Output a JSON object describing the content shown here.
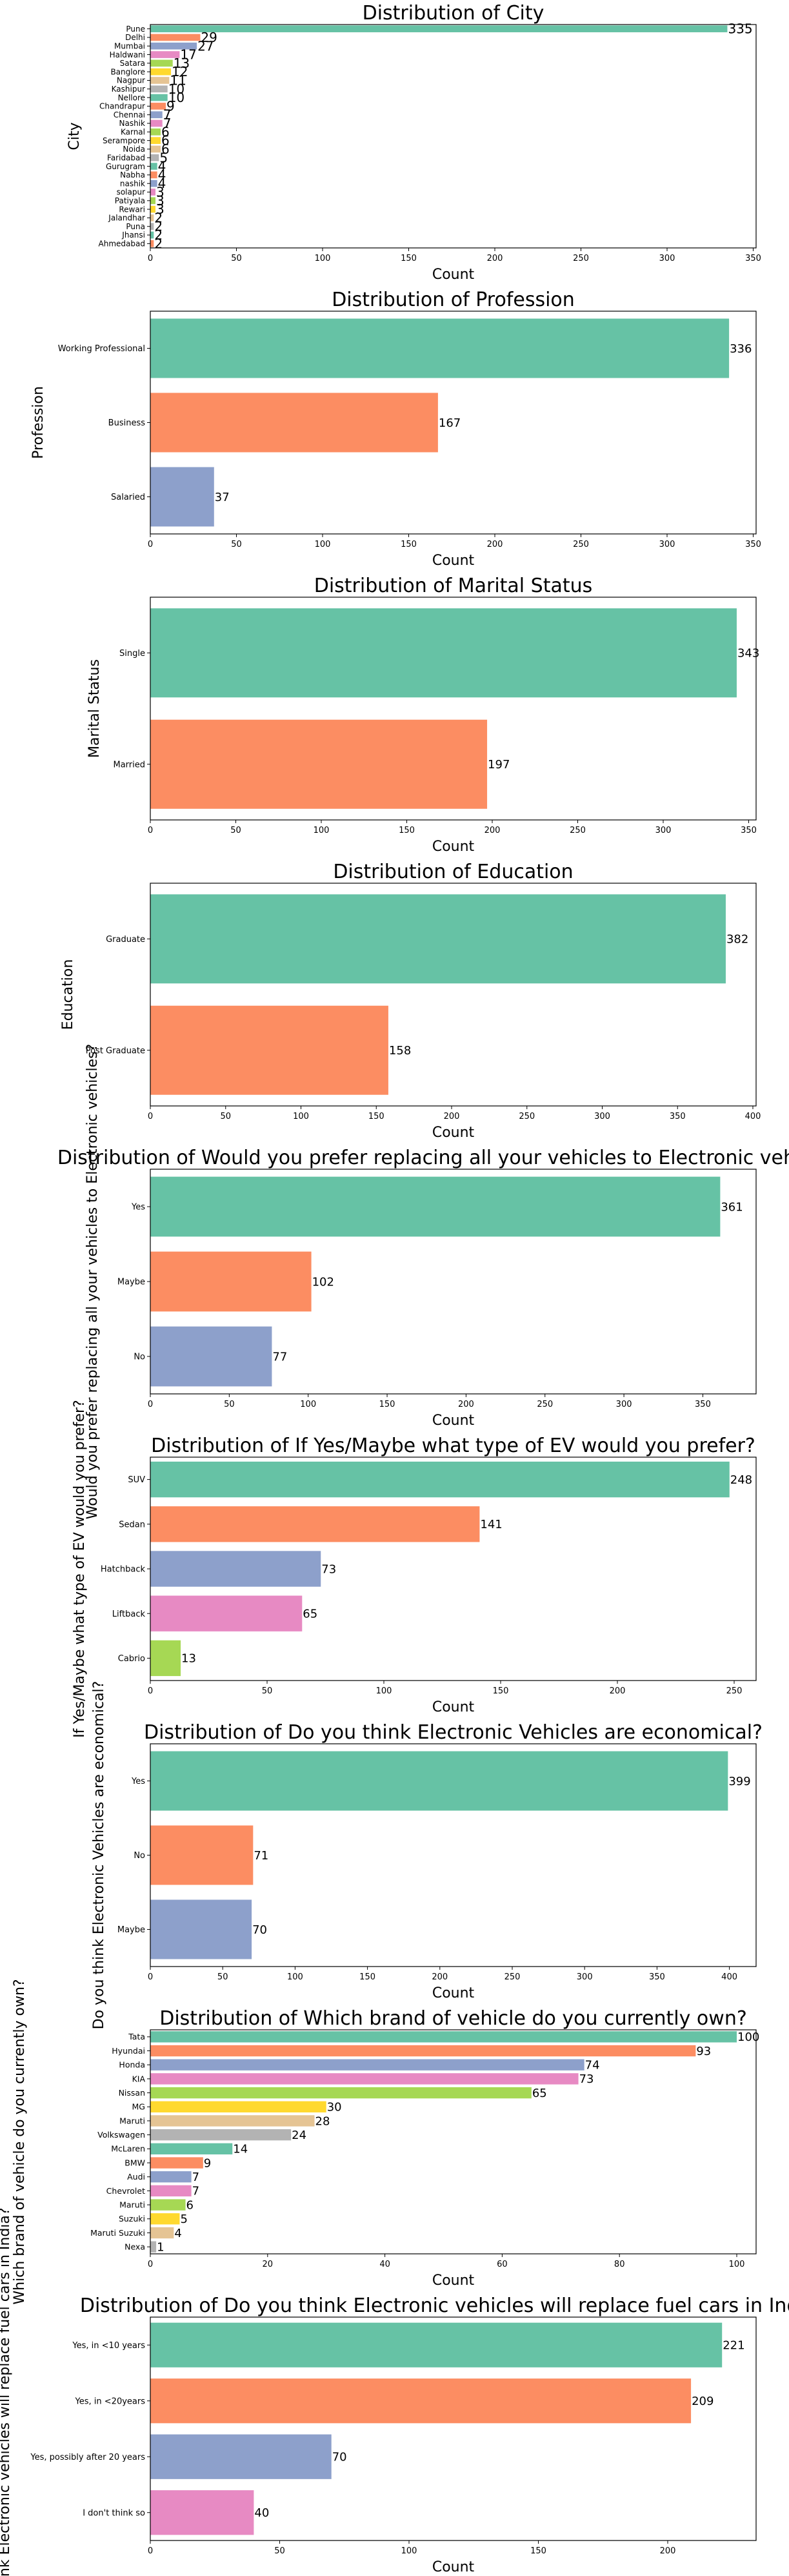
{
  "palette": [
    "#66c2a5",
    "#fc8d62",
    "#8da0cb",
    "#e78ac3",
    "#a6d854",
    "#ffd92f",
    "#e5c494",
    "#b3b3b3"
  ],
  "chart_data": [
    {
      "type": "bar",
      "orientation": "horizontal",
      "title": "Distribution of City",
      "xlabel": "Count",
      "ylabel": "City",
      "xlim": [
        0,
        350
      ],
      "xticks": [
        0,
        50,
        100,
        150,
        200,
        250,
        300,
        350
      ],
      "categories": [
        "Pune",
        "Delhi",
        "Mumbai",
        "Haldwani",
        "Satara",
        "Banglore",
        "Nagpur",
        "Kashipur",
        "Nellore",
        "Chandrapur",
        "Chennai",
        "Nashik",
        "Karnal",
        "Serampore",
        "Noida",
        "Faridabad",
        "Gurugram",
        "Nabha",
        "nashik",
        "solapur",
        "Patiyala",
        "Rewari",
        "Jalandhar",
        "Puna",
        "Jhansi",
        "Ahmedabad"
      ],
      "values": [
        335,
        29,
        27,
        17,
        13,
        12,
        11,
        10,
        10,
        9,
        7,
        7,
        6,
        6,
        6,
        5,
        4,
        4,
        4,
        3,
        3,
        3,
        2,
        2,
        2,
        2
      ],
      "data_labels": [
        "335",
        "29",
        "27",
        "17",
        "13",
        "12",
        "11",
        "10",
        "10",
        "9",
        "7",
        "7",
        "6",
        "6",
        "6",
        "5",
        "4",
        "4",
        "4",
        "3",
        "3",
        "3",
        "2",
        "2",
        "2",
        "2"
      ]
    },
    {
      "type": "bar",
      "orientation": "horizontal",
      "title": "Distribution of Profession",
      "xlabel": "Count",
      "ylabel": "Profession",
      "xlim": [
        0,
        350
      ],
      "xticks": [
        0,
        50,
        100,
        150,
        200,
        250,
        300,
        350
      ],
      "categories": [
        "Working Professional",
        "Business",
        "Salaried"
      ],
      "values": [
        336,
        167,
        37
      ],
      "data_labels": [
        "336",
        "167",
        "37"
      ]
    },
    {
      "type": "bar",
      "orientation": "horizontal",
      "title": "Distribution of Marital Status",
      "xlabel": "Count",
      "ylabel": "Marital Status",
      "xlim": [
        0,
        350
      ],
      "xticks": [
        0,
        50,
        100,
        150,
        200,
        250,
        300,
        350
      ],
      "categories": [
        "Single",
        "Married"
      ],
      "values": [
        343,
        197
      ],
      "data_labels": [
        "343",
        "197"
      ]
    },
    {
      "type": "bar",
      "orientation": "horizontal",
      "title": "Distribution of Education",
      "xlabel": "Count",
      "ylabel": "Education",
      "xlim": [
        0,
        400
      ],
      "xticks": [
        0,
        50,
        100,
        150,
        200,
        250,
        300,
        350,
        400
      ],
      "categories": [
        "Graduate",
        "Post Graduate"
      ],
      "values": [
        382,
        158
      ],
      "data_labels": [
        "382",
        "158"
      ]
    },
    {
      "type": "bar",
      "orientation": "horizontal",
      "title": "Distribution of Would you prefer replacing all your vehicles to Electronic vehicles?",
      "xlabel": "Count",
      "ylabel": "Would you prefer replacing all your vehicles to Electronic vehicles?",
      "xlim": [
        0,
        350
      ],
      "xticks": [
        0,
        50,
        100,
        150,
        200,
        250,
        300,
        350
      ],
      "categories": [
        "Yes",
        "Maybe",
        "No"
      ],
      "values": [
        361,
        102,
        77
      ],
      "data_labels": [
        "361",
        "102",
        "77"
      ]
    },
    {
      "type": "bar",
      "orientation": "horizontal",
      "title": "Distribution of If Yes/Maybe what type of  EV would you prefer?",
      "xlabel": "Count",
      "ylabel": "If Yes/Maybe what type of  EV would you prefer?",
      "xlim": [
        0,
        250
      ],
      "xticks": [
        0,
        50,
        100,
        150,
        200,
        250
      ],
      "categories": [
        "SUV",
        "Sedan",
        "Hatchback",
        "Liftback",
        "Cabrio"
      ],
      "values": [
        248,
        141,
        73,
        65,
        13
      ],
      "data_labels": [
        "248",
        "141",
        "73",
        "65",
        "13"
      ]
    },
    {
      "type": "bar",
      "orientation": "horizontal",
      "title": "Distribution of Do you think Electronic Vehicles are economical?",
      "xlabel": "Count",
      "ylabel": "Do you think Electronic Vehicles are economical?",
      "xlim": [
        0,
        400
      ],
      "xticks": [
        0,
        50,
        100,
        150,
        200,
        250,
        300,
        350,
        400
      ],
      "categories": [
        "Yes",
        "No",
        "Maybe"
      ],
      "values": [
        399,
        71,
        70
      ],
      "data_labels": [
        "399",
        "71",
        "70"
      ]
    },
    {
      "type": "bar",
      "orientation": "horizontal",
      "title": "Distribution of Which brand of vehicle do you currently own?",
      "xlabel": "Count",
      "ylabel": "Which brand of vehicle do you currently own?",
      "xlim": [
        0,
        100
      ],
      "xticks": [
        0,
        20,
        40,
        60,
        80,
        100
      ],
      "categories": [
        "Tata",
        "Hyundai",
        "Honda",
        "KIA",
        "Nissan",
        "MG",
        "Maruti",
        "Volkswagen",
        "McLaren",
        "BMW",
        "Audi",
        "Chevrolet",
        "Maruti",
        "Suzuki",
        "Maruti Suzuki",
        "Nexa"
      ],
      "values": [
        100,
        93,
        74,
        73,
        65,
        30,
        28,
        24,
        14,
        9,
        7,
        7,
        6,
        5,
        4,
        1
      ],
      "data_labels": [
        "100",
        "93",
        "74",
        "73",
        "65",
        "30",
        "28",
        "24",
        "14",
        "9",
        "7",
        "7",
        "6",
        "5",
        "4",
        "1"
      ]
    },
    {
      "type": "bar",
      "orientation": "horizontal",
      "title": "Distribution of Do you think Electronic vehicles will replace fuel cars in India?",
      "xlabel": "Count",
      "ylabel": "Do you think Electronic vehicles will replace fuel cars in India?",
      "xlim": [
        0,
        200
      ],
      "xticks": [
        0,
        50,
        100,
        150,
        200
      ],
      "categories": [
        "Yes, in <10 years",
        "Yes, in <20years",
        "Yes, possibly after 20 years",
        "I don't think so"
      ],
      "values": [
        221,
        209,
        70,
        40
      ],
      "data_labels": [
        "221",
        "209",
        "70",
        "40"
      ]
    }
  ]
}
